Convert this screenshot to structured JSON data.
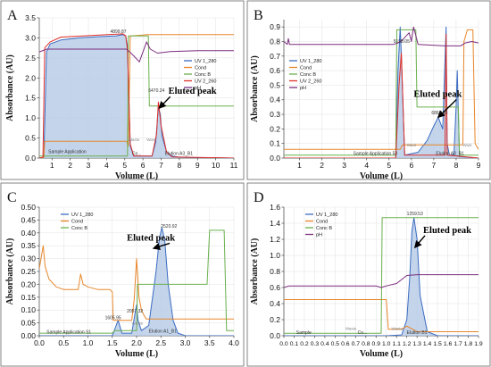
{
  "figure": {
    "colors": {
      "uv1": "#3b6cc2",
      "uv1_fill": "#b8cce8",
      "cond": "#e8862a",
      "concB": "#6ab04c",
      "uv2": "#e0302a",
      "ph": "#7b2d7e",
      "arrow": "#000000"
    }
  },
  "chart_data": [
    {
      "panel": "A",
      "type": "line",
      "xlabel": "Volume (L)",
      "ylabel": "Absorbance (AU)",
      "xlim": [
        0.3,
        11
      ],
      "ylim": [
        0,
        3.5
      ],
      "xticks": [
        1,
        2,
        3,
        4,
        5,
        6,
        7,
        8,
        9,
        10,
        11
      ],
      "yticks": [
        0.0,
        0.5,
        1.0,
        1.5,
        2.0,
        2.5,
        3.0,
        3.5
      ],
      "ytick_labels": [
        "0.0",
        "0.5",
        "1.0",
        "1.5",
        "2.0",
        "2.5",
        "3.0",
        "3.5"
      ],
      "legend": [
        "UV 1_280",
        "Cond",
        "Conc B",
        "UV 2_260",
        "pH"
      ],
      "legend_position": "center-right",
      "annotations": [
        {
          "text": "Eluted peak",
          "x": 7.4,
          "y": 1.6,
          "target_x": 6.9,
          "target_y": 1.25,
          "kind": "peak"
        },
        {
          "text": "4899.87",
          "x": 4.2,
          "y": 3.12,
          "kind": "small"
        },
        {
          "text": "6470.24",
          "x": 6.3,
          "y": 1.65,
          "kind": "small"
        },
        {
          "text": "Sample Application",
          "x": 0.8,
          "y": 0.12,
          "kind": "small"
        },
        {
          "text": "Elution A3_B1",
          "x": 7.2,
          "y": 0.08,
          "kind": "small"
        },
        {
          "text": "Co...",
          "x": 5.4,
          "y": 0.08,
          "kind": "small"
        },
        {
          "text": "Waste",
          "x": 5.2,
          "y": 0.42,
          "kind": "faint"
        },
        {
          "text": "Wast",
          "x": 6.2,
          "y": 0.42,
          "kind": "faint"
        }
      ],
      "series": [
        {
          "name": "UV 1_280",
          "color_key": "uv1",
          "fill": true,
          "x": [
            0.3,
            0.55,
            0.7,
            0.9,
            1.5,
            2.5,
            3.5,
            4.5,
            4.9,
            5.05,
            5.15,
            5.3,
            5.5,
            6.5,
            6.7,
            6.85,
            6.95,
            7.05,
            7.3,
            7.6,
            8,
            9,
            10,
            11
          ],
          "y": [
            0,
            0.02,
            2.65,
            2.85,
            2.95,
            3.0,
            3.03,
            3.05,
            3.08,
            3.05,
            2.8,
            0.3,
            0.05,
            0.05,
            0.4,
            1.25,
            1.1,
            0.55,
            0.15,
            0.05,
            0.02,
            0.01,
            0.01,
            0.0
          ]
        },
        {
          "name": "Cond",
          "color_key": "cond",
          "fill": false,
          "x": [
            0.3,
            0.55,
            0.6,
            5.1,
            5.2,
            5.3,
            6.0,
            6.2,
            6.3,
            11
          ],
          "y": [
            0,
            0.02,
            0.42,
            0.42,
            0.3,
            3.05,
            3.07,
            3.08,
            3.08,
            3.08
          ]
        },
        {
          "name": "Conc B",
          "color_key": "concB",
          "fill": false,
          "x": [
            0.3,
            5.15,
            5.2,
            6.3,
            6.35,
            7.0,
            7.05,
            11
          ],
          "y": [
            0.05,
            0.05,
            3.05,
            3.05,
            1.3,
            1.3,
            1.3,
            1.3
          ]
        },
        {
          "name": "UV 2_260",
          "color_key": "uv2",
          "fill": false,
          "x": [
            0.3,
            0.5,
            0.6,
            0.9,
            1.5,
            4.9,
            5.05,
            5.15,
            5.3,
            5.5,
            6.5,
            6.75,
            6.85,
            7.0,
            7.3,
            7.6,
            11
          ],
          "y": [
            0,
            0.02,
            2.75,
            2.9,
            3.02,
            3.1,
            3.05,
            2.7,
            0.35,
            0.05,
            0.05,
            0.6,
            1.4,
            0.8,
            0.15,
            0.03,
            0.0
          ]
        },
        {
          "name": "pH",
          "color_key": "ph",
          "fill": false,
          "x": [
            0.3,
            0.6,
            0.7,
            5.1,
            5.2,
            5.5,
            5.8,
            6.2,
            6.4,
            6.8,
            7.5,
            9,
            11
          ],
          "y": [
            2.65,
            2.7,
            2.72,
            2.72,
            2.68,
            2.55,
            2.4,
            2.9,
            2.72,
            2.62,
            2.66,
            2.68,
            2.68
          ]
        }
      ]
    },
    {
      "panel": "B",
      "type": "line",
      "xlabel": "Volume (L)",
      "ylabel": "Absorbance (AU)",
      "xlim": [
        0.3,
        9
      ],
      "ylim": [
        0,
        0.95
      ],
      "xticks": [
        1,
        2,
        3,
        4,
        5,
        6,
        7,
        8,
        9
      ],
      "yticks": [
        0.0,
        0.1,
        0.2,
        0.3,
        0.4,
        0.5,
        0.6,
        0.7,
        0.8,
        0.9
      ],
      "ytick_labels": [
        "0.0",
        "0.1",
        "0.2",
        "0.3",
        "0.4",
        "0.5",
        "0.6",
        "0.7",
        "0.8",
        "0.9"
      ],
      "legend": [
        "UV 1_280",
        "Cond",
        "Conc B",
        "UV 2_260",
        "pH"
      ],
      "legend_position": "left",
      "annotations": [
        {
          "text": "Eluted peak",
          "x": 6.1,
          "y": 0.42,
          "target_x": 7.2,
          "target_y": 0.28,
          "kind": "peak"
        },
        {
          "text": "5198.05",
          "x": 5.2,
          "y": 0.79,
          "kind": "small"
        },
        {
          "text": "6867.39",
          "x": 6.9,
          "y": 0.3,
          "kind": "small"
        },
        {
          "text": "Sample Application 53",
          "x": 3.4,
          "y": 0.02,
          "kind": "small"
        },
        {
          "text": "Elution A3_B1",
          "x": 7.1,
          "y": 0.02,
          "kind": "small"
        },
        {
          "text": "Wast",
          "x": 5.8,
          "y": 0.08,
          "kind": "faint"
        },
        {
          "text": "Wast",
          "x": 8.3,
          "y": 0.08,
          "kind": "faint"
        }
      ],
      "series": [
        {
          "name": "UV 1_280",
          "color_key": "uv1",
          "fill": true,
          "x": [
            0.3,
            5.3,
            5.4,
            5.5,
            5.55,
            5.7,
            6.3,
            6.7,
            7.0,
            7.2,
            7.4,
            7.55,
            7.6,
            7.7,
            7.9,
            8.0,
            8.05,
            8.15,
            9
          ],
          "y": [
            0,
            0,
            0.6,
            0.9,
            0.7,
            0.02,
            0.04,
            0.12,
            0.22,
            0.28,
            0.2,
            0.9,
            0.1,
            0.02,
            0.02,
            0.35,
            0.6,
            0.01,
            0.0
          ]
        },
        {
          "name": "Cond",
          "color_key": "cond",
          "fill": false,
          "x": [
            0.3,
            5.5,
            5.6,
            8.3,
            8.35,
            8.5,
            8.75,
            8.85,
            9
          ],
          "y": [
            0.06,
            0.06,
            0.09,
            0.09,
            0.8,
            0.88,
            0.88,
            0.1,
            0.06
          ]
        },
        {
          "name": "Conc B",
          "color_key": "concB",
          "fill": false,
          "x": [
            0.3,
            5.3,
            5.35,
            6.2,
            6.25,
            7.4,
            7.45,
            8.1,
            8.15,
            9
          ],
          "y": [
            0.02,
            0.02,
            0.88,
            0.88,
            0.35,
            0.35,
            0.35,
            0.35,
            0.02,
            0.02
          ]
        },
        {
          "name": "UV 2_260",
          "color_key": "uv2",
          "fill": false,
          "x": [
            0.3,
            5.3,
            5.45,
            5.55,
            5.7,
            7.5,
            7.55,
            7.6,
            9
          ],
          "y": [
            0,
            0,
            0.5,
            0.72,
            0.02,
            0.02,
            0.85,
            0.02,
            0.0
          ]
        },
        {
          "name": "pH",
          "color_key": "ph",
          "fill": false,
          "x": [
            0.3,
            0.45,
            0.5,
            0.55,
            5.2,
            5.4,
            5.6,
            5.9,
            6.0,
            6.1,
            6.3,
            7.5,
            8.2,
            8.4,
            8.7,
            9
          ],
          "y": [
            0.8,
            0.78,
            0.82,
            0.78,
            0.78,
            0.79,
            0.81,
            0.86,
            0.8,
            0.9,
            0.78,
            0.77,
            0.77,
            0.79,
            0.8,
            0.79
          ]
        }
      ]
    },
    {
      "panel": "C",
      "type": "line",
      "xlabel": "Volume (L)",
      "ylabel": "Absorbance (AU)",
      "xlim": [
        0,
        4.0
      ],
      "ylim": [
        0,
        0.5
      ],
      "xticks": [
        0.0,
        0.5,
        1.0,
        1.5,
        2.0,
        2.5,
        3.0,
        3.5,
        4.0
      ],
      "xtick_labels": [
        "0.0",
        "0.5",
        "1.0",
        "1.5",
        "2.0",
        "2.5",
        "3.0",
        "3.5",
        "4.0"
      ],
      "yticks": [
        0.0,
        0.05,
        0.1,
        0.15,
        0.2,
        0.25,
        0.3,
        0.35,
        0.4,
        0.45,
        0.5
      ],
      "ytick_labels": [
        "0.00",
        "0.05",
        "0.10",
        "0.15",
        "0.20",
        "0.25",
        "0.30",
        "0.35",
        "0.40",
        "0.45",
        "0.50"
      ],
      "legend": [
        "UV 1_280",
        "Cond",
        "Conc B"
      ],
      "legend_position": "top-left",
      "annotations": [
        {
          "text": "Eluted peak",
          "x": 1.8,
          "y": 0.37,
          "target_x": 2.35,
          "target_y": 0.34,
          "kind": "peak"
        },
        {
          "text": "2520.92",
          "x": 2.5,
          "y": 0.42,
          "kind": "small"
        },
        {
          "text": "2057.32",
          "x": 1.8,
          "y": 0.09,
          "kind": "small"
        },
        {
          "text": "1605.95",
          "x": 1.35,
          "y": 0.065,
          "kind": "small"
        },
        {
          "text": "Sample Application S1",
          "x": 0.15,
          "y": 0.008,
          "kind": "small"
        },
        {
          "text": "Elution A1_B1",
          "x": 2.25,
          "y": 0.012,
          "kind": "small"
        },
        {
          "text": "Waste",
          "x": 1.9,
          "y": 0.043,
          "kind": "faint"
        }
      ],
      "series": [
        {
          "name": "UV 1_280",
          "color_key": "uv1",
          "fill": true,
          "x": [
            0,
            1.5,
            1.58,
            1.62,
            1.7,
            1.9,
            1.97,
            2.0,
            2.03,
            2.1,
            2.25,
            2.4,
            2.47,
            2.52,
            2.58,
            2.65,
            2.75,
            2.85,
            3.0,
            4.0
          ],
          "y": [
            0,
            0,
            0.04,
            0.06,
            0.01,
            0.01,
            0.09,
            0.12,
            0.06,
            0.02,
            0.04,
            0.25,
            0.38,
            0.42,
            0.37,
            0.2,
            0.06,
            0.01,
            0.0,
            0.0
          ]
        },
        {
          "name": "Cond",
          "color_key": "cond",
          "fill": false,
          "x": [
            0,
            0.08,
            0.12,
            0.2,
            0.35,
            0.5,
            0.7,
            0.8,
            0.85,
            0.9,
            1.0,
            1.2,
            1.45,
            1.5,
            1.52,
            1.9,
            1.95,
            2.0,
            2.05,
            2.1,
            2.15,
            2.2,
            3.0,
            3.5,
            3.7,
            4.0
          ],
          "y": [
            0.26,
            0.35,
            0.27,
            0.22,
            0.19,
            0.18,
            0.18,
            0.18,
            0.24,
            0.2,
            0.19,
            0.18,
            0.18,
            0.17,
            0.06,
            0.06,
            0.14,
            0.3,
            0.15,
            0.1,
            0.08,
            0.065,
            0.065,
            0.065,
            0.065,
            0.065
          ]
        },
        {
          "name": "Conc B",
          "color_key": "concB",
          "fill": false,
          "x": [
            0,
            1.5,
            1.55,
            2.0,
            2.02,
            3.45,
            3.5,
            3.8,
            3.85,
            4.0
          ],
          "y": [
            0.01,
            0.01,
            0.02,
            0.02,
            0.2,
            0.2,
            0.41,
            0.41,
            0.02,
            0.02
          ]
        }
      ]
    },
    {
      "panel": "D",
      "type": "line",
      "xlabel": "Volume (L)",
      "ylabel": "Absorbance (AU)",
      "xlim": [
        0,
        1.9
      ],
      "ylim": [
        0,
        1.6
      ],
      "xticks": [
        0.0,
        0.1,
        0.2,
        0.3,
        0.4,
        0.5,
        0.6,
        0.7,
        0.8,
        0.9,
        1.0,
        1.1,
        1.2,
        1.3,
        1.4,
        1.5,
        1.6,
        1.7,
        1.8,
        1.9
      ],
      "xtick_labels": [
        "0.0",
        "0.1",
        "0.2",
        "0.3",
        "0.4",
        "0.5",
        "0.6",
        "0.7",
        "0.8",
        "0.9",
        "1.0",
        "1.1",
        "1.2",
        "1.3",
        "1.4",
        "1.5",
        "1.6",
        "1.7",
        "1.8",
        "1.9"
      ],
      "yticks": [
        0.0,
        0.2,
        0.4,
        0.6,
        0.8,
        1.0,
        1.2,
        1.4,
        1.6
      ],
      "ytick_labels": [
        "0.0",
        "0.2",
        "0.4",
        "0.6",
        "0.8",
        "1.0",
        "1.2",
        "1.4",
        "1.6"
      ],
      "legend": [
        "UV 1_280",
        "Cond",
        "Conc B",
        "pH"
      ],
      "legend_position": "top-left",
      "annotations": [
        {
          "text": "Eluted peak",
          "x": 1.36,
          "y": 1.28,
          "target_x": 1.28,
          "target_y": 1.1,
          "kind": "peak"
        },
        {
          "text": "1259.53",
          "x": 1.2,
          "y": 1.5,
          "kind": "small"
        },
        {
          "text": "Sample",
          "x": 0.12,
          "y": 0.02,
          "kind": "small"
        },
        {
          "text": "Co...",
          "x": 0.72,
          "y": 0.02,
          "kind": "small"
        },
        {
          "text": "Elution B1",
          "x": 1.2,
          "y": 0.02,
          "kind": "small"
        },
        {
          "text": "Waste",
          "x": 0.6,
          "y": 0.07,
          "kind": "faint"
        },
        {
          "text": "Waste",
          "x": 1.05,
          "y": 0.07,
          "kind": "faint"
        }
      ],
      "series": [
        {
          "name": "UV 1_280",
          "color_key": "uv1",
          "fill": true,
          "x": [
            0,
            1.0,
            1.15,
            1.2,
            1.23,
            1.25,
            1.27,
            1.3,
            1.33,
            1.4,
            1.5,
            1.9
          ],
          "y": [
            0,
            0.0,
            0.01,
            0.2,
            0.75,
            1.3,
            1.47,
            1.2,
            0.5,
            0.05,
            0.0,
            0.0
          ]
        },
        {
          "name": "Cond",
          "color_key": "cond",
          "fill": false,
          "x": [
            0,
            0.95,
            1.0,
            1.02,
            1.15,
            1.2,
            1.3,
            1.9
          ],
          "y": [
            0.45,
            0.45,
            0.45,
            0.08,
            0.08,
            0.12,
            0.05,
            0.05
          ]
        },
        {
          "name": "Conc B",
          "color_key": "concB",
          "fill": false,
          "x": [
            0,
            0.95,
            0.96,
            1.9
          ],
          "y": [
            0.03,
            0.03,
            1.47,
            1.47
          ]
        },
        {
          "name": "pH",
          "color_key": "ph",
          "fill": false,
          "x": [
            0,
            0.05,
            0.9,
            0.95,
            1.0,
            1.1,
            1.2,
            1.3,
            1.4,
            1.5,
            1.9
          ],
          "y": [
            0.6,
            0.62,
            0.62,
            0.6,
            0.62,
            0.65,
            0.75,
            0.76,
            0.76,
            0.76,
            0.76
          ]
        }
      ]
    }
  ]
}
